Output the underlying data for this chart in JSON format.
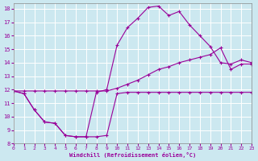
{
  "bg_color": "#cce8f0",
  "line_color": "#990099",
  "grid_color": "#ffffff",
  "xlim": [
    0,
    23
  ],
  "ylim": [
    8,
    18.4
  ],
  "xticks": [
    0,
    1,
    2,
    3,
    4,
    5,
    6,
    7,
    8,
    9,
    10,
    11,
    12,
    13,
    14,
    15,
    16,
    17,
    18,
    19,
    20,
    21,
    22,
    23
  ],
  "yticks": [
    8,
    9,
    10,
    11,
    12,
    13,
    14,
    15,
    16,
    17,
    18
  ],
  "xlabel": "Windchill (Refroidissement éolien,°C)",
  "line1": {
    "x": [
      0,
      1,
      2,
      3,
      4,
      5,
      6,
      7,
      8,
      9,
      10,
      11,
      12,
      13,
      14,
      15,
      16,
      17,
      18,
      19,
      20,
      21,
      22,
      23
    ],
    "y": [
      11.9,
      11.7,
      10.5,
      9.6,
      9.5,
      8.6,
      8.5,
      8.5,
      8.5,
      8.6,
      11.7,
      11.8,
      11.8,
      11.8,
      11.8,
      11.8,
      11.8,
      11.8,
      11.8,
      11.8,
      11.8,
      11.8,
      11.8,
      11.8
    ]
  },
  "line2": {
    "x": [
      0,
      1,
      2,
      3,
      4,
      5,
      6,
      7,
      8,
      9,
      10,
      11,
      12,
      13,
      14,
      15,
      16,
      17,
      18,
      19,
      20,
      21,
      22,
      23
    ],
    "y": [
      11.9,
      11.7,
      10.5,
      9.6,
      9.5,
      8.6,
      8.5,
      8.5,
      11.8,
      12.0,
      15.3,
      16.6,
      17.3,
      18.1,
      18.2,
      17.5,
      17.8,
      16.8,
      16.0,
      15.2,
      14.0,
      13.9,
      14.2,
      14.0
    ]
  },
  "line3": {
    "x": [
      0,
      1,
      2,
      3,
      4,
      5,
      6,
      7,
      8,
      9,
      10,
      11,
      12,
      13,
      14,
      15,
      16,
      17,
      18,
      19,
      20,
      21,
      22,
      23
    ],
    "y": [
      11.9,
      11.9,
      11.9,
      11.9,
      11.9,
      11.9,
      11.9,
      11.9,
      11.9,
      11.9,
      12.1,
      12.4,
      12.7,
      13.1,
      13.5,
      13.7,
      14.0,
      14.2,
      14.4,
      14.6,
      15.1,
      13.5,
      13.9,
      13.9
    ]
  }
}
